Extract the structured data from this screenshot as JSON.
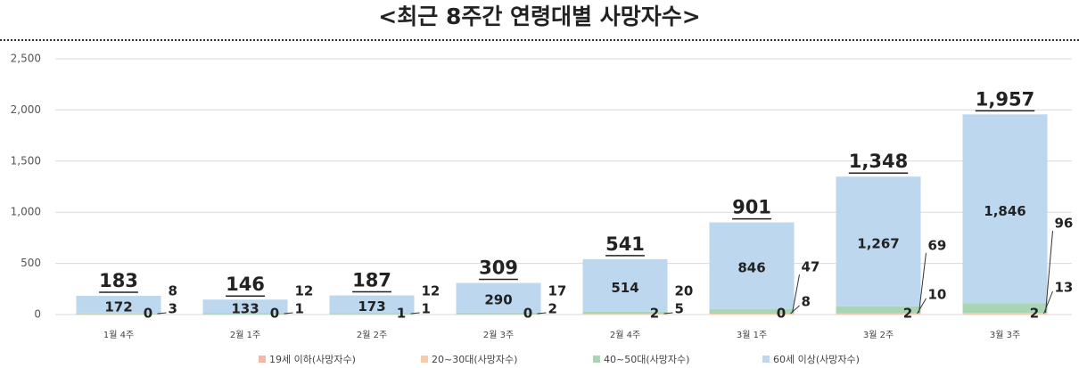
{
  "chart_data": {
    "type": "stacked_bar",
    "title": "<최근 8주간 연령대별 사망자수>",
    "categories": [
      "1월 4주",
      "2월 1주",
      "2월 2주",
      "2월 3주",
      "2월 4주",
      "3월 1주",
      "3월 2주",
      "3월 3주"
    ],
    "series": [
      {
        "name": "19세 이하(사망자수)",
        "color": "#f4b7a8",
        "values": [
          0,
          0,
          1,
          0,
          2,
          0,
          2,
          2
        ]
      },
      {
        "name": "20~30대(사망자수)",
        "color": "#f8cbad",
        "values": [
          3,
          1,
          1,
          2,
          5,
          8,
          10,
          13
        ]
      },
      {
        "name": "40~50대(사망자수)",
        "color": "#a9d5b5",
        "values": [
          8,
          12,
          12,
          17,
          20,
          47,
          69,
          96
        ]
      },
      {
        "name": "60세 이상(사망자수)",
        "color": "#bdd7ee",
        "values": [
          172,
          133,
          173,
          290,
          514,
          846,
          1267,
          1846
        ],
        "value_labels": [
          "172",
          "133",
          "173",
          "290",
          "514",
          "846",
          "1,267",
          "1,846"
        ]
      }
    ],
    "totals": {
      "values": [
        183,
        146,
        187,
        309,
        541,
        901,
        1348,
        1957
      ],
      "value_labels": [
        "183",
        "146",
        "187",
        "309",
        "541",
        "901",
        "1,348",
        "1,957"
      ]
    },
    "ylim": [
      0,
      2500
    ],
    "yticks": [
      0,
      500,
      {
        "value": 1000,
        "label": "1,000"
      },
      {
        "value": 1500,
        "label": "1,500"
      },
      {
        "value": 2000,
        "label": "2,000"
      },
      {
        "value": 2500,
        "label": "2,500"
      }
    ],
    "grid": true,
    "legend": "bottom"
  }
}
